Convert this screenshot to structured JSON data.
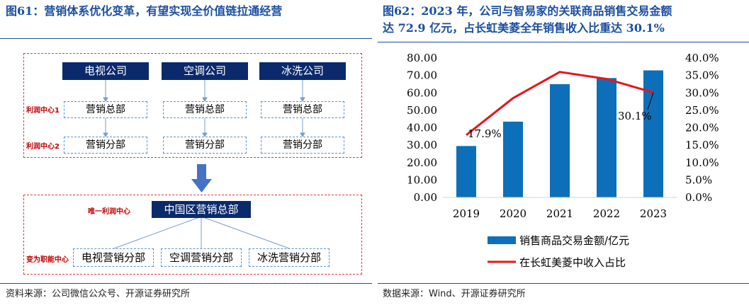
{
  "left_figure": {
    "title": "图61：营销体系优化变革，有望实现全价值链拉通经营",
    "source": "资料来源：公司微信公众号、开源证券研究所",
    "top_companies": [
      "电视公司",
      "空调公司",
      "冰洗公司"
    ],
    "profit_center_1_label": "利润中心1",
    "profit_center_2_label": "利润中心2",
    "marketing_general": [
      "营销总部",
      "营销总部",
      "营销总部"
    ],
    "marketing_branch": [
      "营销分部",
      "营销分部",
      "营销分部"
    ],
    "unique_profit_center_label": "唯一利润中心",
    "china_marketing_hq": "中国区营销总部",
    "function_center_label": "变为职能中心",
    "bottom_branches": [
      "电视营销分部",
      "空调营销分部",
      "冰洗营销分部"
    ]
  },
  "right_figure": {
    "title_line1": "图62：2023 年，公司与智易家的关联商品销售交易金额",
    "title_line2": "达 72.9 亿元，占长虹美菱全年销售收入比重达 30.1%",
    "source": "数据来源：Wind、开源证券研究所"
  },
  "chart_data": {
    "type": "bar",
    "categories": [
      "2019",
      "2020",
      "2021",
      "2022",
      "2023"
    ],
    "series": [
      {
        "name": "销售商品交易金额/亿元",
        "type": "bar",
        "axis": "left",
        "color": "#0d6fba",
        "values": [
          29.5,
          43.5,
          65.0,
          68.5,
          72.9
        ]
      },
      {
        "name": "在长虹美菱中收入占比",
        "type": "line",
        "axis": "right",
        "color": "#e8141b",
        "values": [
          17.9,
          28.5,
          36.0,
          34.0,
          30.1
        ]
      }
    ],
    "y_left": {
      "min": 0,
      "max": 80,
      "step": 10,
      "tick_labels": [
        "0.00",
        "10.00",
        "20.00",
        "30.00",
        "40.00",
        "50.00",
        "60.00",
        "70.00",
        "80.00"
      ]
    },
    "y_right": {
      "min": 0,
      "max": 40,
      "step": 5,
      "tick_labels": [
        "0.0%",
        "5.0%",
        "10.0%",
        "15.0%",
        "20.0%",
        "25.0%",
        "30.0%",
        "35.0%",
        "40.0%"
      ]
    },
    "data_labels": [
      "17.9%",
      "30.1%"
    ],
    "legend_position": "bottom",
    "grid": false
  }
}
